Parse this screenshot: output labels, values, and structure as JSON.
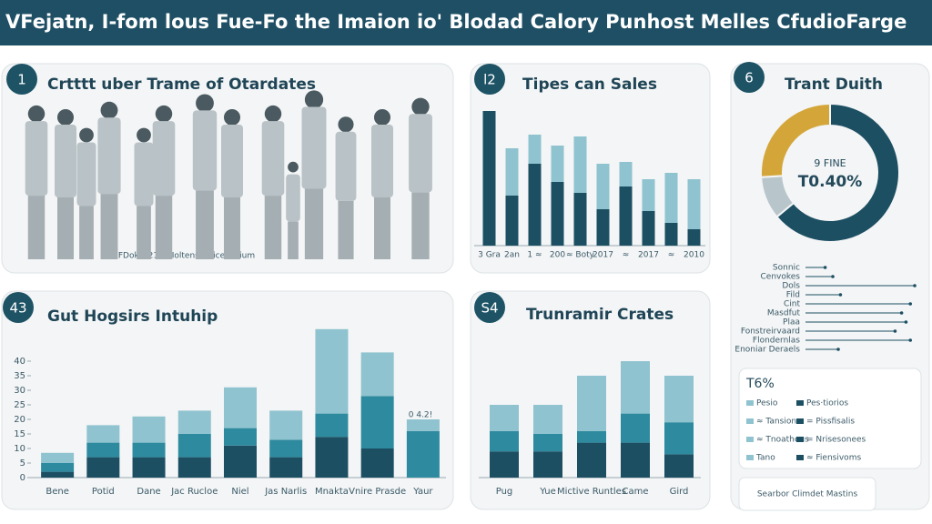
{
  "header": {
    "title": "VFejatn, I-fom lous Fue-Fo the Imaion io' Blodad Calory Punhost Melles CfudioFarge"
  },
  "panels": [
    {
      "badge": "1",
      "title": "Crtttt uber Trame of Otardates",
      "caption": "FDoke?21 fd Ioltens Doice Girium"
    },
    {
      "badge": "l2"
    },
    {
      "badge": "6"
    },
    {
      "badge": "43"
    },
    {
      "badge": "S4"
    }
  ],
  "side_box": {
    "title": "T6%",
    "items": [
      "Pesio",
      "Pes·tiorios",
      "≈ Tansion",
      "= Pissfisalis",
      "≈ Tnoatheus",
      "= Nrisesonees",
      "Tano",
      "≈ Fiensivoms"
    ]
  },
  "footer_box": {
    "text": "Searbor Climdet Mastins"
  },
  "chart_data": [
    {
      "type": "bar",
      "stacked": true,
      "title": "Tipes can Sales",
      "categories": [
        "3 Gra",
        "2an",
        "1 ≈",
        "200",
        "≈ Boty",
        "2017",
        "≈",
        "2017",
        "≈",
        "2010"
      ],
      "series": [
        {
          "color": "#1d4f63",
          "values": [
            148,
            55,
            90,
            70,
            58,
            40,
            65,
            38,
            25,
            18
          ]
        },
        {
          "color": "#8fc3cf",
          "values": [
            0,
            52,
            32,
            40,
            62,
            50,
            27,
            35,
            55,
            55
          ]
        }
      ],
      "ylim": [
        0,
        150
      ]
    },
    {
      "type": "bar",
      "stacked": true,
      "title": "Gut Hogsirs Intuhip",
      "categories": [
        "Bene",
        "Potid",
        "Dane",
        "Jac Rucloe",
        "Niel",
        "Jas Narlis",
        "Mnakta",
        "Vnire Prasde",
        "Yaur"
      ],
      "series": [
        {
          "color": "#1d4f63",
          "values": [
            2,
            7,
            7,
            7,
            11,
            7,
            14,
            10,
            0
          ]
        },
        {
          "color": "#2e8a9e",
          "values": [
            3,
            5,
            5,
            8,
            6,
            6,
            8,
            18,
            16
          ]
        },
        {
          "color": "#8fc3cf",
          "values": [
            3.5,
            6,
            9,
            8,
            14,
            10,
            29,
            15,
            4
          ]
        }
      ],
      "annotations": [
        "0 4.2!"
      ],
      "ylim": [
        0,
        55
      ],
      "yticks": [
        0,
        5,
        10,
        15,
        20,
        25,
        30,
        35,
        40
      ]
    },
    {
      "type": "bar",
      "stacked": true,
      "title": "Trunramir Crates",
      "categories": [
        "Pug",
        "Yue",
        "Mictive Runtles",
        "Came",
        "Gird"
      ],
      "series": [
        {
          "color": "#1d4f63",
          "values": [
            9,
            9,
            12,
            12,
            8
          ]
        },
        {
          "color": "#2e8a9e",
          "values": [
            7,
            6,
            4,
            10,
            11
          ]
        },
        {
          "color": "#8fc3cf",
          "values": [
            9,
            10,
            19,
            18,
            16
          ]
        }
      ],
      "ylim": [
        0,
        55
      ]
    },
    {
      "type": "donut",
      "title": "Trant Duith",
      "center_texts": [
        "9 FINE",
        "T0.40%"
      ],
      "values": [
        64,
        10,
        26
      ],
      "colors": [
        "#1d4f63",
        "#b8c6cc",
        "#d4a63a"
      ]
    },
    {
      "type": "lollipop",
      "categories": [
        "Sonnic",
        "Cenvokes",
        "Dols",
        "Fild",
        "Cint",
        "Masdfut",
        "Plaa",
        "Fonstreirvaard",
        "Flondernlas",
        "Enoniar Deraels"
      ],
      "values": [
        18,
        25,
        100,
        32,
        96,
        88,
        92,
        82,
        96,
        30
      ],
      "color": "#1d4f63",
      "xlim": [
        0,
        100
      ]
    }
  ]
}
